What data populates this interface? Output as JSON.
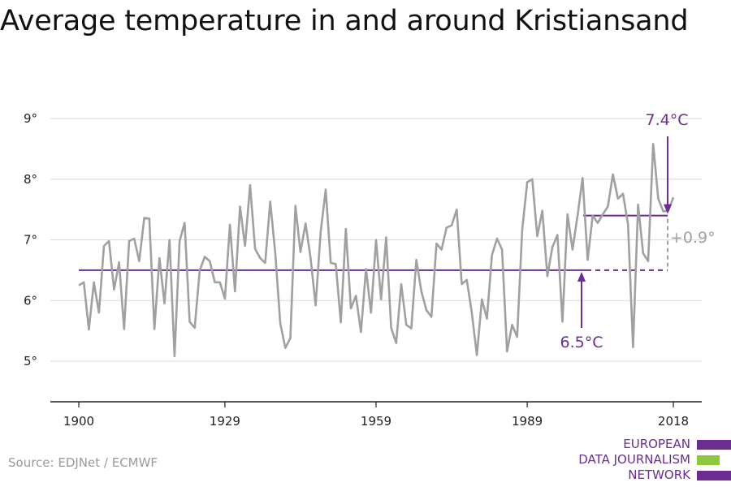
{
  "title": "Average temperature in and around Kristiansand",
  "source": "Source: EDJNet / ECMWF",
  "logo": {
    "lines": [
      "EUROPEAN",
      "DATA JOURNALISM",
      "NETWORK"
    ],
    "colors": {
      "purple": "#6b2d91",
      "green": "#8dc63f"
    }
  },
  "chart_data": {
    "type": "line",
    "title": "Average temperature in and around Kristiansand",
    "xlabel": "",
    "ylabel": "",
    "xlim": [
      1900,
      2018
    ],
    "ylim": [
      4.3,
      9.3
    ],
    "x_ticks": [
      1900,
      1929,
      1959,
      1989,
      2018
    ],
    "x_tick_labels": [
      "1900",
      "1929",
      "1959",
      "1989",
      "2018"
    ],
    "y_ticks": [
      5,
      6,
      7,
      8,
      9
    ],
    "y_tick_labels": [
      "5°",
      "6°",
      "7°",
      "8°",
      "9°"
    ],
    "grid": "horizontal",
    "colors": {
      "series": "#a0a0a0",
      "reference": "#6b2d91",
      "grid": "#d9d9d9"
    },
    "series": [
      {
        "x": [
          1900,
          1901,
          1902,
          1903,
          1904,
          1905,
          1906,
          1907,
          1908,
          1909,
          1910,
          1911,
          1912,
          1913,
          1914,
          1915,
          1916,
          1917,
          1918,
          1919,
          1920,
          1921,
          1922,
          1923,
          1924,
          1925,
          1926,
          1927,
          1928,
          1929,
          1930,
          1931,
          1932,
          1933,
          1934,
          1935,
          1936,
          1937,
          1938,
          1939,
          1940,
          1941,
          1942,
          1943,
          1944,
          1945,
          1946,
          1947,
          1948,
          1949,
          1950,
          1951,
          1952,
          1953,
          1954,
          1955,
          1956,
          1957,
          1958,
          1959,
          1960,
          1961,
          1962,
          1963,
          1964,
          1965,
          1966,
          1967,
          1968,
          1969,
          1970,
          1971,
          1972,
          1973,
          1974,
          1975,
          1976,
          1977,
          1978,
          1979,
          1980,
          1981,
          1982,
          1983,
          1984,
          1985,
          1986,
          1987,
          1988,
          1989,
          1990,
          1991,
          1992,
          1993,
          1994,
          1995,
          1996,
          1997,
          1998,
          1999,
          2000,
          2001,
          2002,
          2003,
          2004,
          2005,
          2006,
          2007,
          2008,
          2009,
          2010,
          2011,
          2012,
          2013,
          2014,
          2015,
          2016,
          2017,
          2018
        ],
        "values": [
          6.25,
          6.3,
          5.52,
          6.3,
          5.8,
          6.9,
          6.98,
          6.18,
          6.63,
          5.53,
          6.98,
          7.02,
          6.65,
          7.36,
          7.35,
          5.53,
          6.7,
          5.95,
          7.0,
          5.08,
          6.98,
          7.28,
          5.65,
          5.55,
          6.5,
          6.72,
          6.65,
          6.3,
          6.3,
          6.03,
          7.25,
          6.15,
          7.55,
          6.9,
          7.9,
          6.85,
          6.7,
          6.62,
          7.63,
          6.78,
          5.62,
          5.22,
          5.38,
          7.56,
          6.8,
          7.27,
          6.7,
          5.92,
          7.13,
          7.83,
          6.62,
          6.6,
          5.64,
          7.18,
          5.87,
          6.08,
          5.48,
          6.52,
          5.8,
          7.0,
          6.02,
          7.04,
          5.55,
          5.3,
          6.27,
          5.6,
          5.54,
          6.67,
          6.15,
          5.84,
          5.73,
          6.94,
          6.84,
          7.2,
          7.24,
          7.5,
          6.27,
          6.34,
          5.8,
          5.1,
          6.02,
          5.7,
          6.75,
          7.02,
          6.84,
          5.16,
          5.6,
          5.4,
          7.16,
          7.95,
          8.0,
          7.06,
          7.48,
          6.4,
          6.88,
          7.08,
          5.65,
          7.42,
          6.84,
          7.4,
          8.02,
          6.67,
          7.4,
          7.28,
          7.42,
          7.55,
          8.08,
          7.68,
          7.76,
          7.26,
          5.23,
          7.58,
          6.78,
          6.65,
          8.58,
          7.68,
          7.47,
          7.48,
          7.7
        ]
      }
    ],
    "reference_lines": [
      {
        "value": 6.5,
        "label": "6.5°C"
      },
      {
        "value": 7.4,
        "label": "7.4°C"
      }
    ],
    "difference_label": "+0.9°"
  }
}
